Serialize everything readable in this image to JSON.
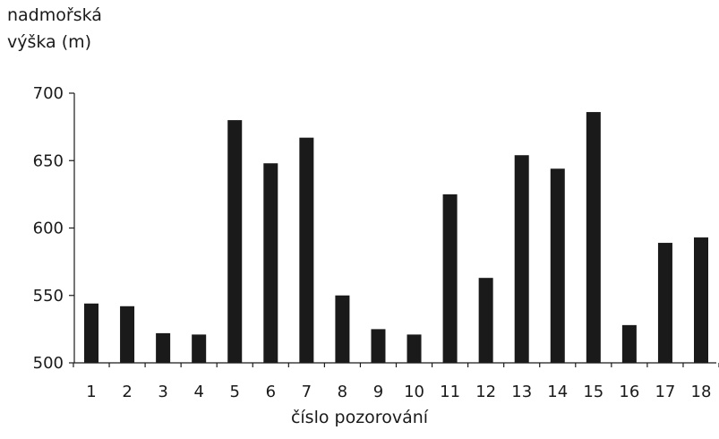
{
  "chart_data": {
    "type": "bar",
    "ylabel_lines": [
      "nadmořská",
      "výška (m)"
    ],
    "xlabel": "číslo pozorování",
    "categories": [
      "1",
      "2",
      "3",
      "4",
      "5",
      "6",
      "7",
      "8",
      "9",
      "10",
      "11",
      "12",
      "13",
      "14",
      "15",
      "16",
      "17",
      "18"
    ],
    "values": [
      544,
      542,
      522,
      521,
      680,
      648,
      667,
      550,
      525,
      521,
      625,
      563,
      654,
      644,
      686,
      528,
      589,
      593
    ],
    "ylim": [
      500,
      700
    ],
    "yticks": [
      500,
      550,
      600,
      650,
      700
    ],
    "grid": false,
    "bar_color": "#1a1a1a"
  }
}
